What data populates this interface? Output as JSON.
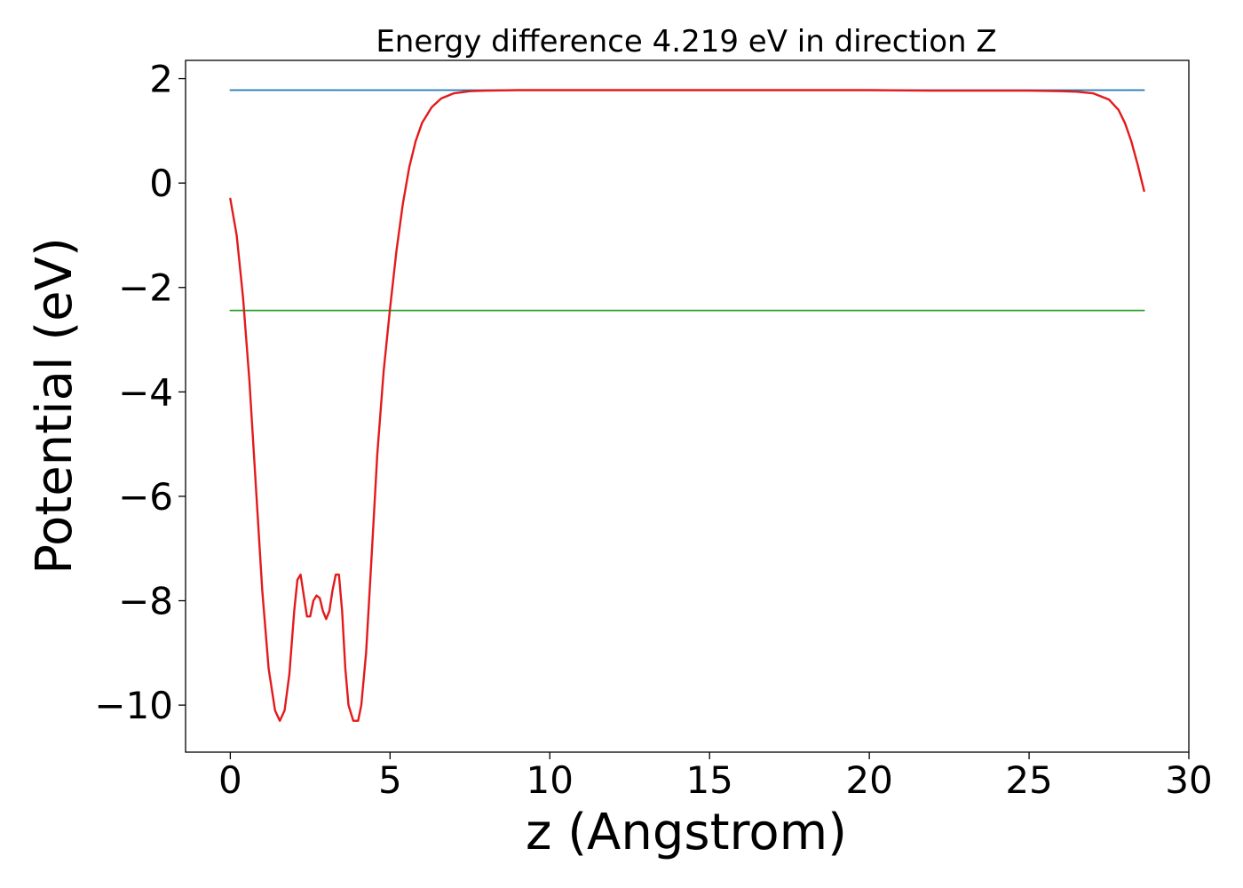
{
  "chart_data": {
    "type": "line",
    "title": "Energy difference 4.219 eV in direction Z",
    "xlabel": "z (Angstrom)",
    "ylabel": "Potential (eV)",
    "xlim": [
      -1.4,
      30.0
    ],
    "ylim": [
      -10.9,
      2.35
    ],
    "x_ticks": [
      0,
      5,
      10,
      15,
      20,
      25,
      30
    ],
    "x_tick_labels": [
      "0",
      "5",
      "10",
      "15",
      "20",
      "25",
      "30"
    ],
    "y_ticks": [
      2,
      0,
      -2,
      -4,
      -6,
      -8,
      -10
    ],
    "y_tick_labels": [
      "2",
      "0",
      "−2",
      "−4",
      "−6",
      "−8",
      "−10"
    ],
    "grid": false,
    "legend": "none",
    "series": [
      {
        "kind": "hline",
        "color": "#1f77b4",
        "x": [
          0,
          28.6
        ],
        "y": [
          1.78,
          1.78
        ]
      },
      {
        "kind": "hline",
        "color": "#2ca02c",
        "x": [
          0,
          28.6
        ],
        "y": [
          -2.44,
          -2.44
        ]
      },
      {
        "kind": "curve",
        "color": "#e31a1c",
        "x": [
          0,
          0.2,
          0.4,
          0.6,
          0.8,
          1.0,
          1.2,
          1.4,
          1.55,
          1.7,
          1.85,
          2.0,
          2.1,
          2.2,
          2.3,
          2.4,
          2.5,
          2.6,
          2.7,
          2.8,
          2.9,
          3.0,
          3.1,
          3.2,
          3.3,
          3.4,
          3.5,
          3.6,
          3.7,
          3.85,
          4.0,
          4.1,
          4.25,
          4.4,
          4.6,
          4.8,
          5.0,
          5.2,
          5.4,
          5.6,
          5.8,
          6.0,
          6.3,
          6.6,
          7.0,
          7.5,
          8.0,
          9.0,
          10,
          12,
          14,
          16,
          18,
          20,
          22,
          24,
          25,
          26,
          26.5,
          27,
          27.5,
          27.8,
          28.0,
          28.2,
          28.4,
          28.6
        ],
        "y": [
          -0.3,
          -1.0,
          -2.2,
          -3.8,
          -5.8,
          -7.8,
          -9.3,
          -10.1,
          -10.3,
          -10.1,
          -9.4,
          -8.2,
          -7.6,
          -7.5,
          -7.9,
          -8.3,
          -8.3,
          -8.0,
          -7.9,
          -7.95,
          -8.2,
          -8.35,
          -8.2,
          -7.8,
          -7.5,
          -7.5,
          -8.2,
          -9.3,
          -10.0,
          -10.3,
          -10.3,
          -10.0,
          -9.0,
          -7.4,
          -5.2,
          -3.6,
          -2.4,
          -1.3,
          -0.4,
          0.3,
          0.8,
          1.15,
          1.45,
          1.62,
          1.72,
          1.76,
          1.77,
          1.78,
          1.78,
          1.78,
          1.78,
          1.78,
          1.78,
          1.78,
          1.77,
          1.77,
          1.77,
          1.76,
          1.75,
          1.72,
          1.6,
          1.4,
          1.15,
          0.8,
          0.35,
          -0.15
        ]
      }
    ]
  }
}
